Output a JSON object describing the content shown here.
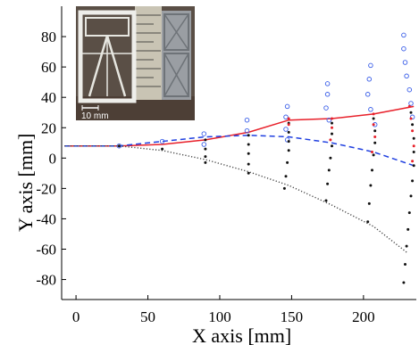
{
  "chart_data": {
    "type": "scatter",
    "title": "",
    "xlabel": "X axis [mm]",
    "ylabel": "Y axis [mm]",
    "xlim": [
      -10,
      238
    ],
    "ylim": [
      -92,
      100
    ],
    "xticks": [
      0,
      50,
      100,
      150,
      200
    ],
    "yticks": [
      80,
      60,
      40,
      20,
      0,
      -20,
      -40,
      -60,
      -80
    ],
    "xtick_labels": [
      "0",
      "50",
      "100",
      "150",
      "200"
    ],
    "ytick_labels": [
      "80",
      "60",
      "40",
      "20",
      "0",
      "-20",
      "-40",
      "-60",
      "-80"
    ],
    "grid": false,
    "legend": "none",
    "lines": [
      {
        "style": "solid",
        "color": "#e8202a",
        "marker": "none",
        "x": [
          -8,
          30,
          60,
          90,
          120,
          148,
          178,
          207,
          235
        ],
        "y": [
          8,
          8,
          9,
          12,
          17,
          25,
          26,
          29,
          34
        ]
      },
      {
        "style": "dashed",
        "color": "#1f3fe0",
        "marker": "none",
        "x": [
          -8,
          30,
          60,
          90,
          120,
          148,
          178,
          207,
          235
        ],
        "y": [
          8,
          8,
          11,
          14,
          15,
          14,
          10,
          4,
          -5
        ]
      },
      {
        "style": "dotted",
        "color": "#444444",
        "marker": "none",
        "x": [
          -8,
          30,
          60,
          90,
          120,
          148,
          178,
          207,
          230
        ],
        "y": [
          8,
          8,
          5,
          -1,
          -9,
          -18,
          -31,
          -45,
          -62
        ]
      }
    ],
    "series": [
      {
        "marker": "open-circle",
        "color": "#3a5ee8",
        "x": [
          30,
          60,
          89,
          89,
          119,
          119,
          147,
          146,
          146,
          147,
          175,
          175,
          174,
          176,
          205,
          204,
          203,
          205,
          208,
          228,
          228,
          229,
          230,
          232,
          233,
          234
        ],
        "y": [
          8,
          11,
          16,
          9,
          25,
          18,
          34,
          27,
          19,
          12,
          49,
          42,
          33,
          25,
          61,
          52,
          42,
          32,
          22,
          81,
          72,
          63,
          54,
          45,
          36,
          27
        ]
      },
      {
        "marker": "dot",
        "color": "#111111",
        "x": [
          30,
          60,
          90,
          90,
          90,
          90,
          120,
          120,
          120,
          120,
          120,
          148,
          148,
          148,
          148,
          147,
          146,
          145,
          178,
          178,
          178,
          177,
          176,
          175,
          174,
          207,
          208,
          208,
          207,
          206,
          205,
          204,
          203,
          233,
          234,
          235,
          235,
          235,
          234,
          233,
          232,
          231,
          230,
          229,
          228
        ],
        "y": [
          8,
          6,
          12,
          6,
          1,
          -3,
          15,
          9,
          3,
          -4,
          -10,
          23,
          17,
          11,
          5,
          -3,
          -12,
          -20,
          23,
          16,
          8,
          0,
          -8,
          -17,
          -28,
          26,
          18,
          10,
          2,
          -8,
          -18,
          -30,
          -42,
          30,
          22,
          13,
          4,
          -5,
          -15,
          -25,
          -36,
          -47,
          -58,
          -70,
          -82
        ]
      },
      {
        "marker": "dot",
        "color": "#e8202a",
        "x": [
          148,
          148,
          178,
          178,
          177,
          207,
          207,
          208,
          206,
          232,
          233,
          234,
          235,
          234
        ],
        "y": [
          26,
          22,
          26,
          20,
          12,
          29,
          22,
          14,
          4,
          34,
          26,
          18,
          8,
          -2
        ]
      }
    ]
  },
  "inset": {
    "description_label": "10 mm"
  }
}
